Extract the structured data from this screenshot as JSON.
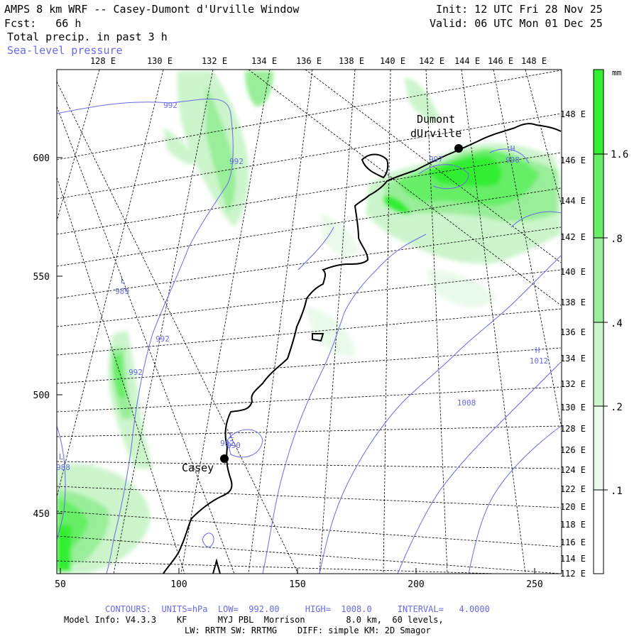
{
  "header": {
    "title": "AMPS 8 km WRF -- Casey-Dumont d'Urville Window",
    "forecast": "Fcst:   66 h",
    "field": "Total precip. in past 3 h",
    "overlay": "Sea-level pressure",
    "init": "Init: 12 UTC Fri 28 Nov 25",
    "valid": "Valid: 06 UTC Mon 01 Dec 25"
  },
  "axes": {
    "x_ticks": [
      "50",
      "100",
      "150",
      "200",
      "250"
    ],
    "y_ticks": [
      "600",
      "550",
      "500",
      "450"
    ],
    "top_lon_labels": [
      "128 E",
      "130 E",
      "132 E",
      "134 E",
      "136 E",
      "138 E",
      "140 E",
      "142 E",
      "144 E",
      "146 E",
      "148 E"
    ],
    "right_lat_labels": [
      "148 E",
      "146 E",
      "144 E",
      "142 E",
      "140 E",
      "138 E",
      "136 E",
      "134 E",
      "132 E",
      "130 E",
      "128 E",
      "126 E",
      "124 E",
      "122 E",
      "120 E",
      "118 E",
      "116 E",
      "114 E",
      "112 E"
    ]
  },
  "colorbar": {
    "unit": "mm",
    "labels": [
      "1.6",
      ".8",
      ".4",
      ".2",
      ".1"
    ],
    "colors": [
      "#33ee33",
      "#66ee66",
      "#99ee99",
      "#ccf5cc",
      "#eafaea",
      "#ffffff"
    ]
  },
  "stations": [
    {
      "name_line1": "Dumont",
      "name_line2": "dUrville"
    },
    {
      "name_line1": "Casey",
      "name_line2": ""
    }
  ],
  "contour_labels": [
    "992",
    "992",
    "992",
    "992",
    "992",
    "997",
    "998",
    "1008",
    "1012",
    "988",
    "990",
    "989"
  ],
  "pressure_centers": [
    "L",
    "L",
    "L",
    "H",
    "H"
  ],
  "footer": {
    "contours": "CONTOURS:  UNITS=hPa  LOW=  992.00     HIGH=  1008.0     INTERVAL=   4.0000",
    "model_info": "Model Info: V4.3.3    KF      MYJ PBL  Morrison        8.0 km,  60 levels,",
    "physics": "LW: RRTM SW: RRTMG    DIFF: simple KM: 2D Smagor"
  }
}
